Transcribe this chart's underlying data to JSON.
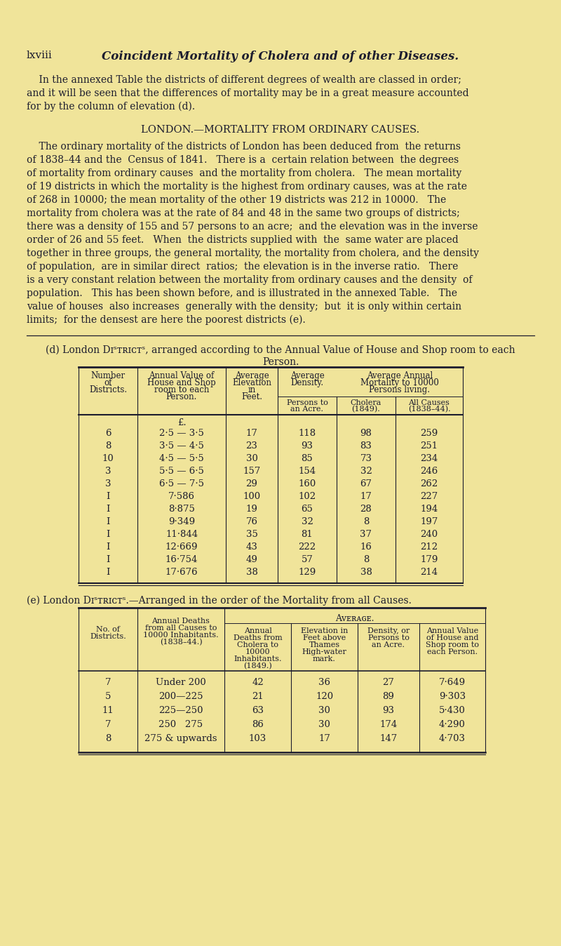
{
  "bg_color": "#f0e49a",
  "text_color": "#1c1c2e",
  "page_header_left": "lxviii",
  "page_header_center": "Coincident Mortality of Cholera and of other Diseases.",
  "intro_lines": [
    "    In the annexed Table the districts of different degrees of wealth are classed in order;",
    "and it will be seen that the differences of mortality may be in a great measure accounted",
    "for by the column of elevation (d)."
  ],
  "section_title": "LONDON.—MORTALITY FROM ORDINARY CAUSES.",
  "body_lines": [
    "    The ordinary mortality of the districts of London has been deduced from  the returns",
    "of 1838–44 and the  Census of 1841.   There is a  certain relation between  the degrees",
    "of mortality from ordinary causes  and the mortality from cholera.   The mean mortality",
    "of 19 districts in which the mortality is the highest from ordinary causes, was at the rate",
    "of 268 in 10000; the mean mortality of the other 19 districts was 212 in 10000.   The",
    "mortality from cholera was at the rate of 84 and 48 in the same two groups of districts;",
    "there was a density of 155 and 57 persons to an acre;  and the elevation was in the inverse",
    "order of 26 and 55 feet.   When  the districts supplied with  the  same water are placed",
    "together in three groups, the general mortality, the mortality from cholera, and the density",
    "of population,  are in similar direct  ratios;  the elevation is in the inverse ratio.   There",
    "is a very constant relation between the mortality from ordinary causes and the density  of",
    "population.   This has been shown before, and is illustrated in the annexed Table.   The",
    "value of houses  also increases  generally with the density;  but  it is only within certain",
    "limits;  for the densest are here the poorest districts (e)."
  ],
  "table_d_title_line1": "(d) Lᴏndᴏn Dɪˢᴛʀɪᴄᴛˢ, arranged according to the Annual Value of House and Shop room to each",
  "table_d_title_line2": "Person.",
  "table_d_data": [
    [
      "6",
      "2·5 — 3·5",
      "17",
      "118",
      "98",
      "259"
    ],
    [
      "8",
      "3·5 — 4·5",
      "23",
      "93",
      "83",
      "251"
    ],
    [
      "10",
      "4·5 — 5·5",
      "30",
      "85",
      "73",
      "234"
    ],
    [
      "3",
      "5·5 — 6·5",
      "157",
      "154",
      "32",
      "246"
    ],
    [
      "3",
      "6·5 — 7·5",
      "29",
      "160",
      "67",
      "262"
    ],
    [
      "I",
      "7·586",
      "100",
      "102",
      "17",
      "227"
    ],
    [
      "I",
      "8·875",
      "19",
      "65",
      "28",
      "194"
    ],
    [
      "I",
      "9·349",
      "76",
      "32",
      "8",
      "197"
    ],
    [
      "I",
      "11·844",
      "35",
      "81",
      "37",
      "240"
    ],
    [
      "I",
      "12·669",
      "43",
      "222",
      "16",
      "212"
    ],
    [
      "I",
      "16·754",
      "49",
      "57",
      "8",
      "179"
    ],
    [
      "I",
      "17·676",
      "38",
      "129",
      "38",
      "214"
    ]
  ],
  "table_e_title": "(e) Lᴏndᴏn Dɪˢᴛʀɪᴄᴛˢ.—Arranged in the order of the Mortality from all Causes.",
  "table_e_data": [
    [
      "7",
      "Under 200",
      "42",
      "36",
      "27",
      "7·649"
    ],
    [
      "5",
      "200—225",
      "21",
      "120",
      "89",
      "9·303"
    ],
    [
      "11",
      "225—250",
      "63",
      "30",
      "93",
      "5·430"
    ],
    [
      "7",
      "250   275",
      "86",
      "30",
      "174",
      "4·290"
    ],
    [
      "8",
      "275 & upwards",
      "103",
      "17",
      "147",
      "4·703"
    ]
  ]
}
